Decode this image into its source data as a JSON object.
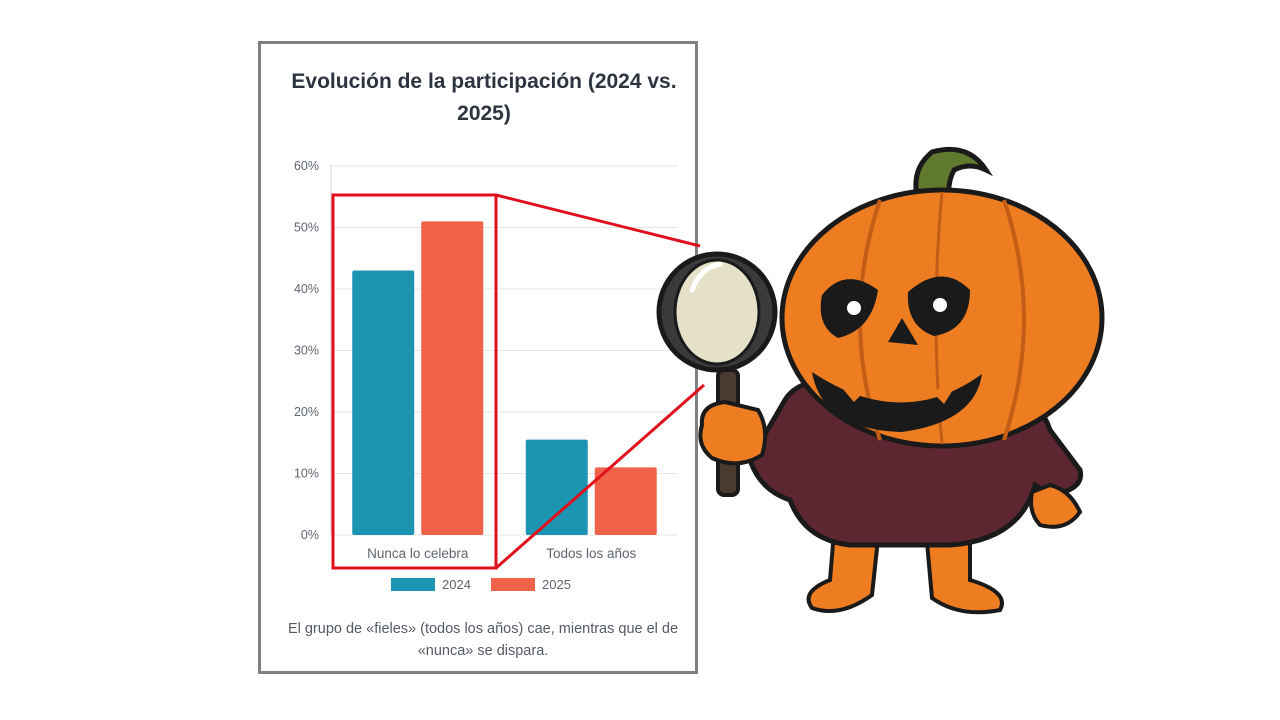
{
  "colors": {
    "series_2024": "#1d94b2",
    "series_2025": "#f0624a",
    "highlight": "#e0101c",
    "card_border": "#808080",
    "grid": "#e6e6e6"
  },
  "chart_data": {
    "type": "bar",
    "title": "Evolución de la participación (2024 vs. 2025)",
    "categories": [
      "Nunca lo celebra",
      "Todos los años"
    ],
    "series": [
      {
        "name": "2024",
        "values": [
          43,
          15.5
        ],
        "color": "#1d94b2"
      },
      {
        "name": "2025",
        "values": [
          51,
          11
        ],
        "color": "#f0624a"
      }
    ],
    "ylim": [
      0,
      60
    ],
    "yticks": [
      "0%",
      "10%",
      "20%",
      "30%",
      "40%",
      "50%",
      "60%"
    ],
    "grid": true,
    "legend": "bottom",
    "highlighted_category": "Nunca lo celebra"
  },
  "caption": "El grupo de «fieles» (todos los años) cae, mientras que el de «nunca» se dispara.",
  "illustration": {
    "icon": "pumpkin-with-magnifying-glass-icon"
  }
}
